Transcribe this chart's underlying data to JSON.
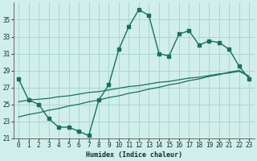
{
  "xlabel": "Humidex (Indice chaleur)",
  "background_color": "#d0eeea",
  "grid_color": "#a8d8d0",
  "line_color": "#1a6e62",
  "xlim": [
    -0.5,
    23.5
  ],
  "ylim": [
    21,
    37
  ],
  "yticks": [
    21,
    23,
    25,
    27,
    29,
    31,
    33,
    35
  ],
  "xticks": [
    0,
    1,
    2,
    3,
    4,
    5,
    6,
    7,
    8,
    9,
    10,
    11,
    12,
    13,
    14,
    15,
    16,
    17,
    18,
    19,
    20,
    21,
    22,
    23
  ],
  "series1_x": [
    0,
    1,
    2,
    3,
    4,
    5,
    6,
    7,
    8,
    9,
    10,
    11,
    12,
    13,
    14,
    15,
    16,
    17,
    18,
    19,
    20,
    21,
    22,
    23
  ],
  "series1_y": [
    28.0,
    25.5,
    25.0,
    23.3,
    22.3,
    22.3,
    21.8,
    21.3,
    25.5,
    27.3,
    31.5,
    34.2,
    36.2,
    35.5,
    31.0,
    30.7,
    33.3,
    33.7,
    32.0,
    32.5,
    32.3,
    31.5,
    29.5,
    28.0
  ],
  "series2_x": [
    0,
    1,
    2,
    3,
    4,
    5,
    6,
    7,
    8,
    9,
    10,
    11,
    12,
    13,
    14,
    15,
    16,
    17,
    18,
    19,
    20,
    21,
    22,
    23
  ],
  "series2_y": [
    25.3,
    25.5,
    25.6,
    25.7,
    25.9,
    26.0,
    26.2,
    26.4,
    26.5,
    26.7,
    26.9,
    27.1,
    27.2,
    27.4,
    27.6,
    27.7,
    27.9,
    28.1,
    28.2,
    28.4,
    28.6,
    28.7,
    28.9,
    28.3
  ],
  "series3_x": [
    0,
    1,
    2,
    3,
    4,
    5,
    6,
    7,
    8,
    9,
    10,
    11,
    12,
    13,
    14,
    15,
    16,
    17,
    18,
    19,
    20,
    21,
    22,
    23
  ],
  "series3_y": [
    23.5,
    23.8,
    24.0,
    24.3,
    24.5,
    24.8,
    25.0,
    25.3,
    25.5,
    25.8,
    26.0,
    26.3,
    26.5,
    26.8,
    27.0,
    27.3,
    27.5,
    27.8,
    28.0,
    28.3,
    28.5,
    28.8,
    29.0,
    28.3
  ]
}
